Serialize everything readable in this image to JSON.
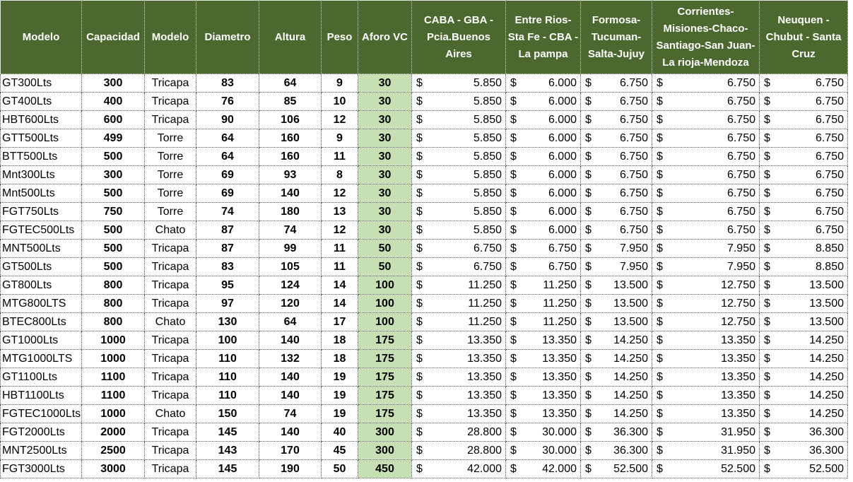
{
  "headers": {
    "modelo": "Modelo",
    "capacidad": "Capacidad",
    "modelo2": "Modelo",
    "diametro": "Diametro",
    "altura": "Altura",
    "peso": "Peso",
    "aforo": "Aforo VC",
    "caba": "CABA - GBA - Pcia.Buenos Aires",
    "entre_rios": "Entre Rios-Sta Fe - CBA - La pampa",
    "formosa": "Formosa-Tucuman-Salta-Jujuy",
    "corrientes": "Corrientes-Misiones-Chaco-Santiago-San Juan-La rioja-Mendoza",
    "neuquen": "Neuquen - Chubut - Santa Cruz"
  },
  "currency": "$",
  "rows": [
    {
      "modelo": "GT300Lts",
      "capacidad": "300",
      "tipo": "Tricapa",
      "diametro": "83",
      "altura": "64",
      "peso": "9",
      "aforo": "30",
      "caba": "5.850",
      "entre_rios": "6.000",
      "formosa": "6.750",
      "corrientes": "6.750",
      "neuquen": "6.750"
    },
    {
      "modelo": "GT400Lts",
      "capacidad": "400",
      "tipo": "Tricapa",
      "diametro": "76",
      "altura": "85",
      "peso": "10",
      "aforo": "30",
      "caba": "5.850",
      "entre_rios": "6.000",
      "formosa": "6.750",
      "corrientes": "6.750",
      "neuquen": "6.750"
    },
    {
      "modelo": "HBT600Lts",
      "capacidad": "600",
      "tipo": "Tricapa",
      "diametro": "90",
      "altura": "106",
      "peso": "12",
      "aforo": "30",
      "caba": "5.850",
      "entre_rios": "6.000",
      "formosa": "6.750",
      "corrientes": "6.750",
      "neuquen": "6.750"
    },
    {
      "modelo": "GTT500Lts",
      "capacidad": "499",
      "tipo": "Torre",
      "diametro": "64",
      "altura": "160",
      "peso": "9",
      "aforo": "30",
      "caba": "5.850",
      "entre_rios": "6.000",
      "formosa": "6.750",
      "corrientes": "6.750",
      "neuquen": "6.750"
    },
    {
      "modelo": "BTT500Lts",
      "capacidad": "500",
      "tipo": "Torre",
      "diametro": "64",
      "altura": "160",
      "peso": "11",
      "aforo": "30",
      "caba": "5.850",
      "entre_rios": "6.000",
      "formosa": "6.750",
      "corrientes": "6.750",
      "neuquen": "6.750"
    },
    {
      "modelo": "Mnt300Lts",
      "capacidad": "300",
      "tipo": "Torre",
      "diametro": "69",
      "altura": "93",
      "peso": "8",
      "aforo": "30",
      "caba": "5.850",
      "entre_rios": "6.000",
      "formosa": "6.750",
      "corrientes": "6.750",
      "neuquen": "6.750"
    },
    {
      "modelo": "Mnt500Lts",
      "capacidad": "500",
      "tipo": "Torre",
      "diametro": "69",
      "altura": "140",
      "peso": "12",
      "aforo": "30",
      "caba": "5.850",
      "entre_rios": "6.000",
      "formosa": "6.750",
      "corrientes": "6.750",
      "neuquen": "6.750"
    },
    {
      "modelo": "FGT750Lts",
      "capacidad": "750",
      "tipo": "Torre",
      "diametro": "74",
      "altura": "180",
      "peso": "13",
      "aforo": "30",
      "caba": "5.850",
      "entre_rios": "6.000",
      "formosa": "6.750",
      "corrientes": "6.750",
      "neuquen": "6.750"
    },
    {
      "modelo": "FGTEC500Lts",
      "capacidad": "500",
      "tipo": "Chato",
      "diametro": "87",
      "altura": "74",
      "peso": "12",
      "aforo": "30",
      "caba": "5.850",
      "entre_rios": "6.000",
      "formosa": "6.750",
      "corrientes": "6.750",
      "neuquen": "6.750"
    },
    {
      "modelo": "MNT500Lts",
      "capacidad": "500",
      "tipo": "Tricapa",
      "diametro": "87",
      "altura": "99",
      "peso": "11",
      "aforo": "50",
      "caba": "6.750",
      "entre_rios": "6.750",
      "formosa": "7.950",
      "corrientes": "7.950",
      "neuquen": "8.850"
    },
    {
      "modelo": "GT500Lts",
      "capacidad": "500",
      "tipo": "Tricapa",
      "diametro": "83",
      "altura": "105",
      "peso": "11",
      "aforo": "50",
      "caba": "6.750",
      "entre_rios": "6.750",
      "formosa": "7.950",
      "corrientes": "7.950",
      "neuquen": "8.850"
    },
    {
      "modelo": "GT800Lts",
      "capacidad": "800",
      "tipo": "Tricapa",
      "diametro": "95",
      "altura": "124",
      "peso": "14",
      "aforo": "100",
      "caba": "11.250",
      "entre_rios": "11.250",
      "formosa": "13.500",
      "corrientes": "12.750",
      "neuquen": "13.500"
    },
    {
      "modelo": "MTG800LTS",
      "capacidad": "800",
      "tipo": "Tricapa",
      "diametro": "97",
      "altura": "120",
      "peso": "14",
      "aforo": "100",
      "caba": "11.250",
      "entre_rios": "11.250",
      "formosa": "13.500",
      "corrientes": "12.750",
      "neuquen": "13.500"
    },
    {
      "modelo": "BTEC800Lts",
      "capacidad": "800",
      "tipo": "Chato",
      "diametro": "130",
      "altura": "64",
      "peso": "17",
      "aforo": "100",
      "caba": "11.250",
      "entre_rios": "11.250",
      "formosa": "13.500",
      "corrientes": "12.750",
      "neuquen": "13.500"
    },
    {
      "modelo": "GT1000Lts",
      "capacidad": "1000",
      "tipo": "Tricapa",
      "diametro": "100",
      "altura": "140",
      "peso": "18",
      "aforo": "175",
      "caba": "13.350",
      "entre_rios": "13.350",
      "formosa": "14.250",
      "corrientes": "13.350",
      "neuquen": "14.250"
    },
    {
      "modelo": "MTG1000LTS",
      "capacidad": "1000",
      "tipo": "Tricapa",
      "diametro": "110",
      "altura": "132",
      "peso": "18",
      "aforo": "175",
      "caba": "13.350",
      "entre_rios": "13.350",
      "formosa": "14.250",
      "corrientes": "13.350",
      "neuquen": "14.250"
    },
    {
      "modelo": "GT1100Lts",
      "capacidad": "1100",
      "tipo": "Tricapa",
      "diametro": "110",
      "altura": "140",
      "peso": "19",
      "aforo": "175",
      "caba": "13.350",
      "entre_rios": "13.350",
      "formosa": "14.250",
      "corrientes": "13.350",
      "neuquen": "14.250"
    },
    {
      "modelo": "HBT1100Lts",
      "capacidad": "1100",
      "tipo": "Tricapa",
      "diametro": "110",
      "altura": "140",
      "peso": "19",
      "aforo": "175",
      "caba": "13.350",
      "entre_rios": "13.350",
      "formosa": "14.250",
      "corrientes": "13.350",
      "neuquen": "14.250"
    },
    {
      "modelo": "FGTEC1000Lts",
      "capacidad": "1000",
      "tipo": "Chato",
      "diametro": "150",
      "altura": "74",
      "peso": "19",
      "aforo": "175",
      "caba": "13.350",
      "entre_rios": "13.350",
      "formosa": "14.250",
      "corrientes": "13.350",
      "neuquen": "14.250"
    },
    {
      "modelo": "FGT2000Lts",
      "capacidad": "2000",
      "tipo": "Tricapa",
      "diametro": "145",
      "altura": "140",
      "peso": "40",
      "aforo": "300",
      "caba": "28.800",
      "entre_rios": "30.000",
      "formosa": "36.300",
      "corrientes": "31.950",
      "neuquen": "36.300"
    },
    {
      "modelo": "MNT2500Lts",
      "capacidad": "2500",
      "tipo": "Tricapa",
      "diametro": "143",
      "altura": "170",
      "peso": "45",
      "aforo": "300",
      "caba": "28.800",
      "entre_rios": "30.000",
      "formosa": "36.300",
      "corrientes": "31.950",
      "neuquen": "36.300"
    },
    {
      "modelo": "FGT3000Lts",
      "capacidad": "3000",
      "tipo": "Tricapa",
      "diametro": "145",
      "altura": "190",
      "peso": "50",
      "aforo": "450",
      "caba": "42.000",
      "entre_rios": "42.000",
      "formosa": "52.500",
      "corrientes": "52.500",
      "neuquen": "52.500"
    }
  ]
}
